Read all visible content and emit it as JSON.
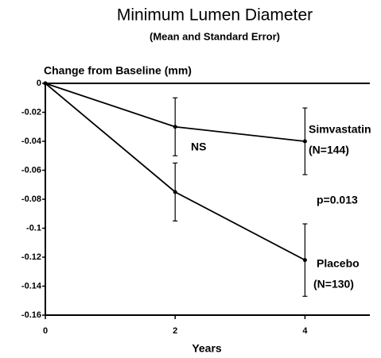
{
  "chart_data": {
    "type": "line",
    "title": "Minimum Lumen Diameter",
    "subtitle": "(Mean and Standard Error)",
    "y_label": "Change from Baseline (mm)",
    "x_label": "Years",
    "x": [
      0,
      2,
      4
    ],
    "xlim": [
      0,
      5
    ],
    "xticks": [
      0,
      2,
      4
    ],
    "ylim": [
      -0.16,
      0
    ],
    "yticks": [
      0,
      -0.02,
      -0.04,
      -0.06,
      -0.08,
      -0.1,
      -0.12,
      -0.14,
      -0.16
    ],
    "series": [
      {
        "name": "Simvastatin",
        "annotation": "(N=144)",
        "color": "#000000",
        "values": [
          0,
          -0.03,
          -0.04
        ],
        "errors": [
          null,
          0.02,
          0.023
        ]
      },
      {
        "name": "Placebo",
        "annotation": "(N=130)",
        "color": "#000000",
        "values": [
          0,
          -0.075,
          -0.122
        ],
        "errors": [
          null,
          0.02,
          0.025
        ]
      }
    ],
    "annotations": [
      "NS",
      "p=0.013"
    ]
  }
}
